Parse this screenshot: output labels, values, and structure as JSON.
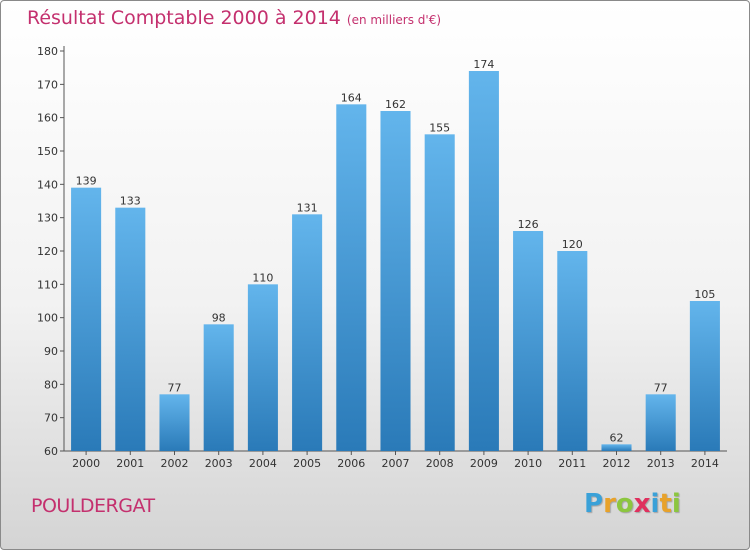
{
  "header": {
    "title": "Résultat Comptable 2000 à 2014",
    "subtitle": "(en milliers d'€)"
  },
  "footer": {
    "commune": "POULDERGAT",
    "logo_letters": [
      "P",
      "r",
      "o",
      "x",
      "i",
      "t",
      "i"
    ],
    "logo_colors": [
      "#3aa1d8",
      "#e8a22a",
      "#8cc63f",
      "#e0305e",
      "#3aa1d8",
      "#e8a22a",
      "#8cc63f"
    ]
  },
  "colors": {
    "bar_light": "#63b5ec",
    "bar_dark": "#2a7ab8",
    "title": "#c4306e"
  },
  "chart_data": {
    "type": "bar",
    "title": "Résultat Comptable 2000 à 2014",
    "subtitle": "(en milliers d'€)",
    "categories": [
      "2000",
      "2001",
      "2002",
      "2003",
      "2004",
      "2005",
      "2006",
      "2007",
      "2008",
      "2009",
      "2010",
      "2011",
      "2012",
      "2013",
      "2014"
    ],
    "values": [
      139,
      133,
      77,
      98,
      110,
      131,
      164,
      162,
      155,
      174,
      126,
      120,
      62,
      77,
      105
    ],
    "ylim": [
      60,
      180
    ],
    "yticks": [
      60,
      70,
      80,
      90,
      100,
      110,
      120,
      130,
      140,
      150,
      160,
      170,
      180
    ],
    "grid": false,
    "data_labels": true
  }
}
